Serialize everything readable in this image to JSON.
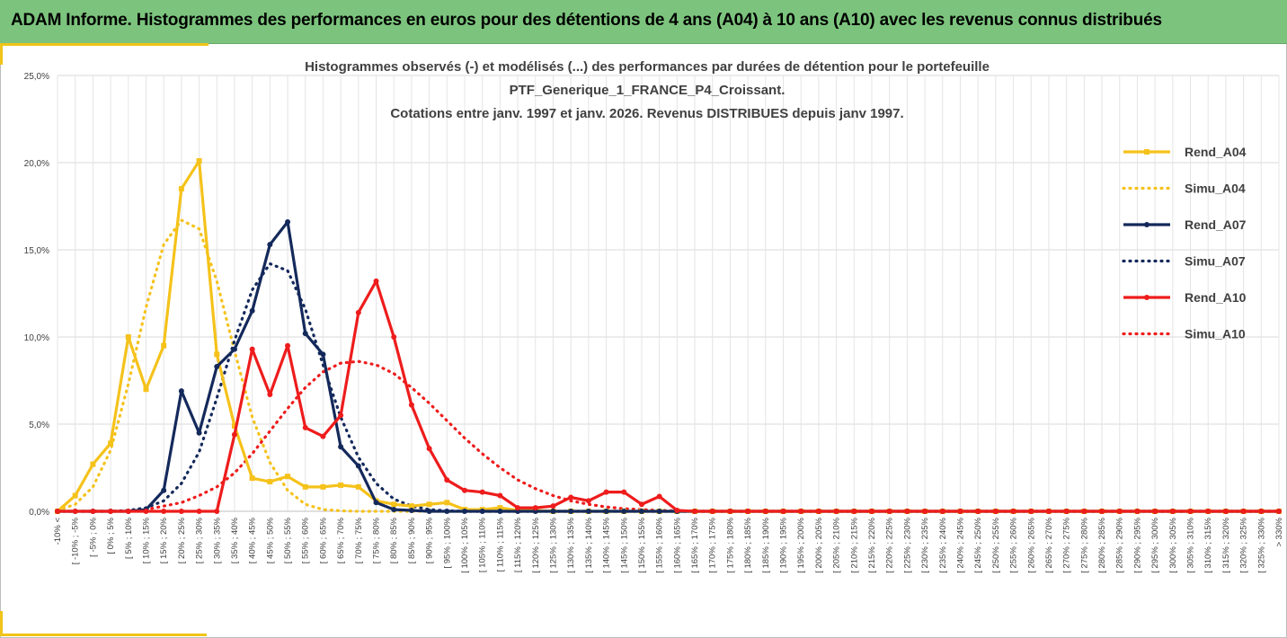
{
  "header": {
    "title": "ADAM Informe. Histogrammes des performances en euros pour des détentions de 4 ans (A04) à 10 ans (A10) avec les revenus connus distribués"
  },
  "colors": {
    "banner": "#7cc47d",
    "accent": "#f0c418",
    "A04": "#f5c21b",
    "A07": "#14295b",
    "A10": "#ee1c1c"
  },
  "chart_data": {
    "type": "line",
    "title": [
      "Histogrammes observés (-) et modélisés (...) des performances par durées de détention pour le portefeuille",
      "PTF_Generique_1_FRANCE_P4_Croissant.",
      "Cotations entre janv. 1997 et janv. 2026. Revenus DISTRIBUES depuis janv 1997."
    ],
    "xlabel": "",
    "ylabel": "",
    "ylim": [
      0,
      25
    ],
    "yticks": [
      0,
      5,
      10,
      15,
      20,
      25
    ],
    "ytick_labels": [
      "0,0%",
      "5,0%",
      "10,0%",
      "15,0%",
      "20,0%",
      "25,0%"
    ],
    "legend_position": "right",
    "categories": [
      "-10% <",
      "[ -10% ; -5%",
      "[ -5% ; 0%",
      "[ 0% ; 5%",
      "[ 5% ; 10%",
      "[ 10% ; 15%",
      "[ 15% ; 20%",
      "[ 20% ; 25%",
      "[ 25% ; 30%",
      "[ 30% ; 35%",
      "[ 35% ; 40%",
      "[ 40% ; 45%",
      "[ 45% ; 50%",
      "[ 50% ; 55%",
      "[ 55% ; 60%",
      "[ 60% ; 65%",
      "[ 65% ; 70%",
      "[ 70% ; 75%",
      "[ 75% ; 80%",
      "[ 80% ; 85%",
      "[ 85% ; 90%",
      "[ 90% ; 95%",
      "[ 95% ; 100%",
      "[ 100% ; 105%",
      "[ 105% ; 110%",
      "[ 110% ; 115%",
      "[ 115% ; 120%",
      "[ 120% ; 125%",
      "[ 125% ; 130%",
      "[ 130% ; 135%",
      "[ 135% ; 140%",
      "[ 140% ; 145%",
      "[ 145% ; 150%",
      "[ 150% ; 155%",
      "[ 155% ; 160%",
      "[ 160% ; 165%",
      "[ 165% ; 170%",
      "[ 170% ; 175%",
      "[ 175% ; 180%",
      "[ 180% ; 185%",
      "[ 185% ; 190%",
      "[ 190% ; 195%",
      "[ 195% ; 200%",
      "[ 200% ; 205%",
      "[ 205% ; 210%",
      "[ 210% ; 215%",
      "[ 215% ; 220%",
      "[ 220% ; 225%",
      "[ 225% ; 230%",
      "[ 230% ; 235%",
      "[ 235% ; 240%",
      "[ 240% ; 245%",
      "[ 245% ; 250%",
      "[ 250% ; 255%",
      "[ 255% ; 260%",
      "[ 260% ; 265%",
      "[ 265% ; 270%",
      "[ 270% ; 275%",
      "[ 275% ; 280%",
      "[ 280% ; 285%",
      "[ 285% ; 290%",
      "[ 290% ; 295%",
      "[ 295% ; 300%",
      "[ 300% ; 305%",
      "[ 305% ; 310%",
      "[ 310% ; 315%",
      "[ 315% ; 320%",
      "[ 320% ; 325%",
      "[ 325% ; 330%",
      "> 330%"
    ],
    "series": [
      {
        "name": "Rend_A04",
        "style": "solid",
        "color": "#f5c21b",
        "values": [
          0,
          0.9,
          2.7,
          3.9,
          10.0,
          7.0,
          9.5,
          18.5,
          20.1,
          9.0,
          4.9,
          1.9,
          1.7,
          2.0,
          1.4,
          1.4,
          1.5,
          1.4,
          0.6,
          0.4,
          0.3,
          0.4,
          0.5,
          0.1,
          0.1,
          0.2,
          0.05,
          0.05,
          0,
          0,
          0,
          0,
          0,
          0,
          0,
          0,
          0,
          0,
          0,
          0,
          0,
          0,
          0,
          0,
          0,
          0,
          0,
          0,
          0,
          0,
          0,
          0,
          0,
          0,
          0,
          0,
          0,
          0,
          0,
          0,
          0,
          0,
          0,
          0,
          0,
          0,
          0,
          0,
          0,
          0
        ]
      },
      {
        "name": "Simu_A04",
        "style": "dotted",
        "color": "#f5c21b",
        "values": [
          0.05,
          0.4,
          1.4,
          3.5,
          7.3,
          11.7,
          15.3,
          16.7,
          16.2,
          13.2,
          9.2,
          5.4,
          2.8,
          1.2,
          0.4,
          0.1,
          0.03,
          0,
          0,
          0,
          0,
          0,
          0,
          0,
          0,
          0,
          0,
          0,
          0,
          0,
          0,
          0,
          0,
          0,
          0,
          0,
          0,
          0,
          0,
          0,
          0,
          0,
          0,
          0,
          0,
          0,
          0,
          0,
          0,
          0,
          0,
          0,
          0,
          0,
          0,
          0,
          0,
          0,
          0,
          0,
          0,
          0,
          0,
          0,
          0,
          0,
          0,
          0,
          0,
          0
        ]
      },
      {
        "name": "Rend_A07",
        "style": "solid",
        "color": "#14295b",
        "values": [
          0,
          0,
          0,
          0,
          0,
          0.1,
          1.2,
          6.9,
          4.5,
          8.3,
          9.3,
          11.5,
          15.3,
          16.6,
          10.2,
          9.0,
          3.7,
          2.6,
          0.5,
          0.1,
          0.05,
          0,
          0,
          0,
          0,
          0,
          0,
          0,
          0,
          0,
          0,
          0,
          0,
          0,
          0,
          0,
          0,
          0,
          0,
          0,
          0,
          0,
          0,
          0,
          0,
          0,
          0,
          0,
          0,
          0,
          0,
          0,
          0,
          0,
          0,
          0,
          0,
          0,
          0,
          0,
          0,
          0,
          0,
          0,
          0,
          0,
          0,
          0,
          0,
          0
        ]
      },
      {
        "name": "Simu_A07",
        "style": "dotted",
        "color": "#14295b",
        "values": [
          0,
          0,
          0,
          0,
          0.05,
          0.2,
          0.6,
          1.6,
          3.4,
          6.5,
          9.8,
          12.7,
          14.2,
          13.8,
          11.6,
          8.4,
          5.4,
          3.1,
          1.6,
          0.7,
          0.3,
          0.1,
          0.03,
          0,
          0,
          0,
          0,
          0,
          0,
          0,
          0,
          0,
          0,
          0,
          0,
          0,
          0,
          0,
          0,
          0,
          0,
          0,
          0,
          0,
          0,
          0,
          0,
          0,
          0,
          0,
          0,
          0,
          0,
          0,
          0,
          0,
          0,
          0,
          0,
          0,
          0,
          0,
          0,
          0,
          0,
          0,
          0,
          0,
          0,
          0
        ]
      },
      {
        "name": "Rend_A10",
        "style": "solid",
        "color": "#ee1c1c",
        "values": [
          0,
          0,
          0,
          0,
          0,
          0,
          0,
          0,
          0,
          0,
          4.4,
          9.3,
          6.7,
          9.5,
          4.8,
          4.3,
          5.5,
          11.4,
          13.2,
          10.0,
          6.1,
          3.6,
          1.8,
          1.2,
          1.1,
          0.9,
          0.2,
          0.2,
          0.3,
          0.8,
          0.6,
          1.1,
          1.1,
          0.4,
          0.85,
          0.05,
          0,
          0,
          0,
          0,
          0,
          0,
          0,
          0,
          0,
          0,
          0,
          0,
          0,
          0,
          0,
          0,
          0,
          0,
          0,
          0,
          0,
          0,
          0,
          0,
          0,
          0,
          0,
          0,
          0,
          0,
          0,
          0,
          0,
          0
        ]
      },
      {
        "name": "Simu_A10",
        "style": "dotted",
        "color": "#ee1c1c",
        "values": [
          0,
          0,
          0,
          0,
          0,
          0.1,
          0.3,
          0.5,
          0.9,
          1.4,
          2.2,
          3.3,
          4.6,
          5.9,
          7.1,
          8.0,
          8.5,
          8.6,
          8.4,
          7.9,
          7.1,
          6.2,
          5.2,
          4.2,
          3.3,
          2.5,
          1.8,
          1.3,
          0.9,
          0.6,
          0.4,
          0.25,
          0.15,
          0.1,
          0.05,
          0.03,
          0,
          0,
          0,
          0,
          0,
          0,
          0,
          0,
          0,
          0,
          0,
          0,
          0,
          0,
          0,
          0,
          0,
          0,
          0,
          0,
          0,
          0,
          0,
          0,
          0,
          0,
          0,
          0,
          0,
          0,
          0,
          0,
          0,
          0
        ]
      }
    ]
  }
}
